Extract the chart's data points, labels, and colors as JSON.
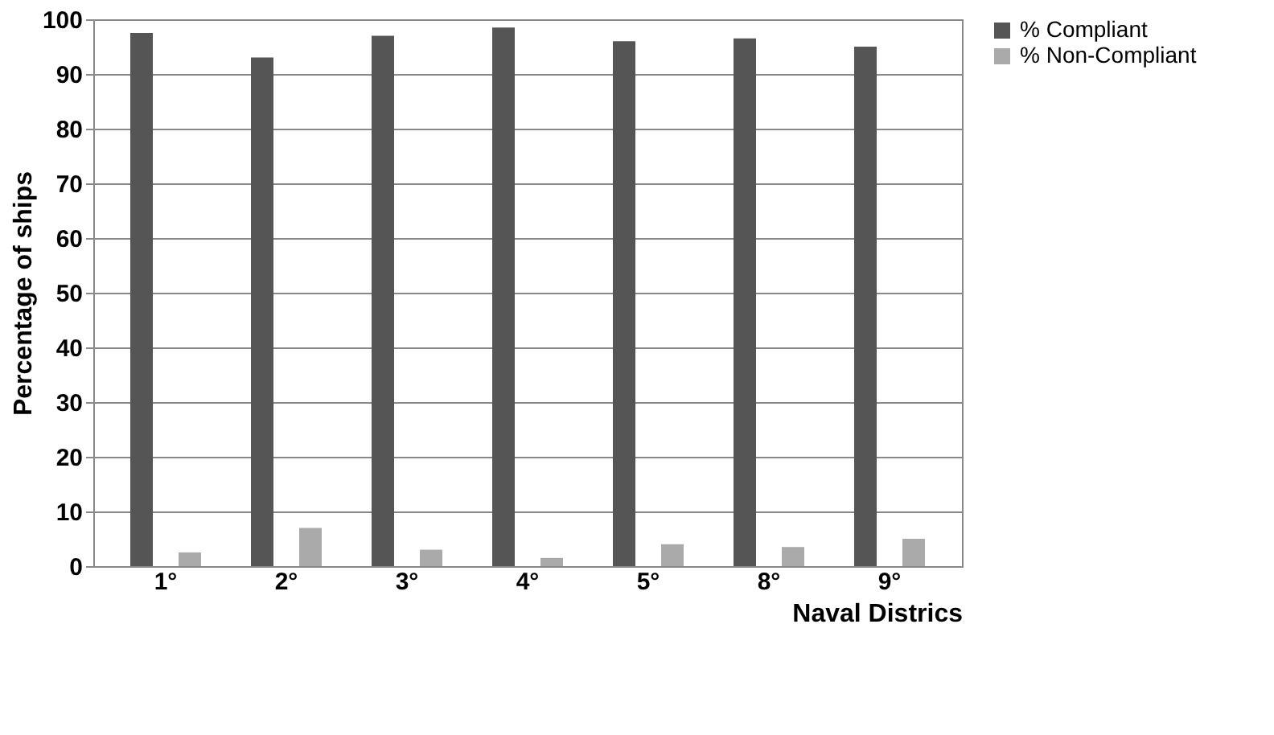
{
  "chart_data": {
    "type": "bar",
    "xlabel": "Naval Districs",
    "ylabel": "Percentage of ships",
    "categories": [
      "1°",
      "2°",
      "3°",
      "4°",
      "5°",
      "8°",
      "9°"
    ],
    "series": [
      {
        "name": "% Compliant",
        "color": "#555555",
        "values": [
          97.5,
          93,
          97,
          98.5,
          96,
          96.5,
          95
        ]
      },
      {
        "name": "% Non-Compliant",
        "color": "#aaaaaa",
        "values": [
          2.5,
          7,
          3,
          1.5,
          4,
          3.5,
          5
        ]
      }
    ],
    "ylim": [
      0,
      100
    ],
    "yticks": [
      0,
      10,
      20,
      30,
      40,
      50,
      60,
      70,
      80,
      90,
      100
    ],
    "grid": "y",
    "legend": "right"
  }
}
